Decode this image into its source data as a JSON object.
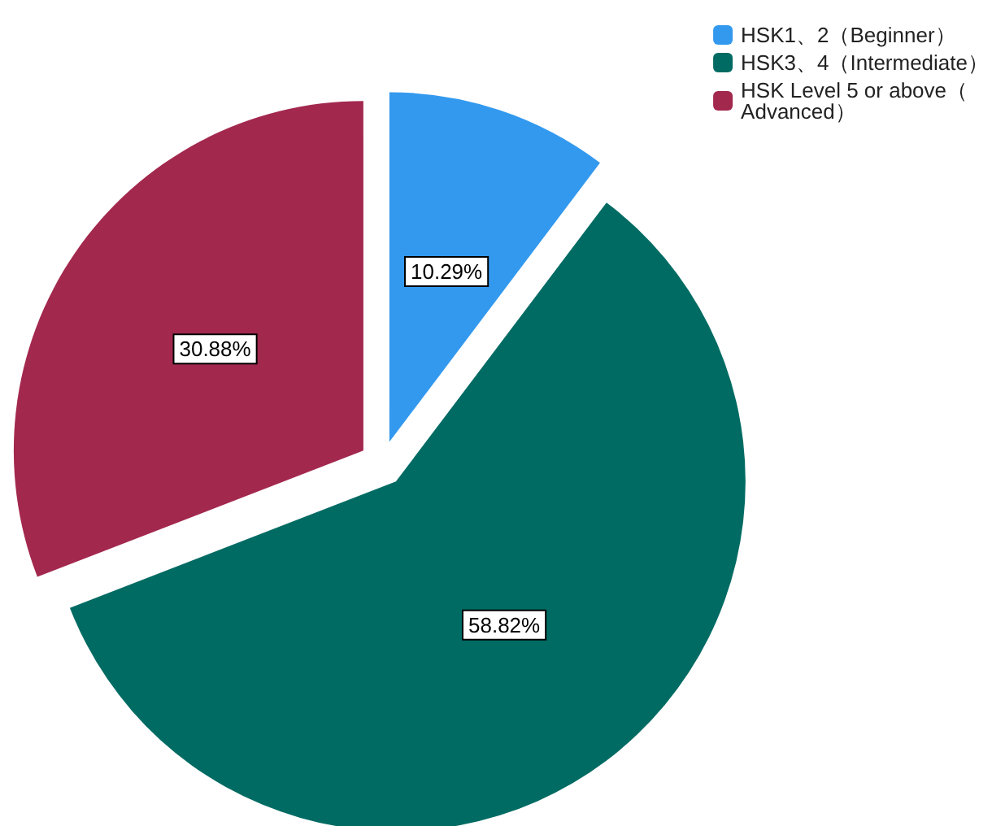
{
  "chart_data": {
    "type": "pie",
    "categories": [
      "HSK1、2（Beginner）",
      "HSK3、4（Intermediate）",
      "HSK Level 5 or above（Advanced）"
    ],
    "values": [
      10.29,
      58.82,
      30.88
    ],
    "colors": [
      "#3399ee",
      "#006b63",
      "#a3284e"
    ],
    "value_labels": [
      "10.29%",
      "58.82%",
      "30.88%"
    ],
    "legend": "top right"
  }
}
